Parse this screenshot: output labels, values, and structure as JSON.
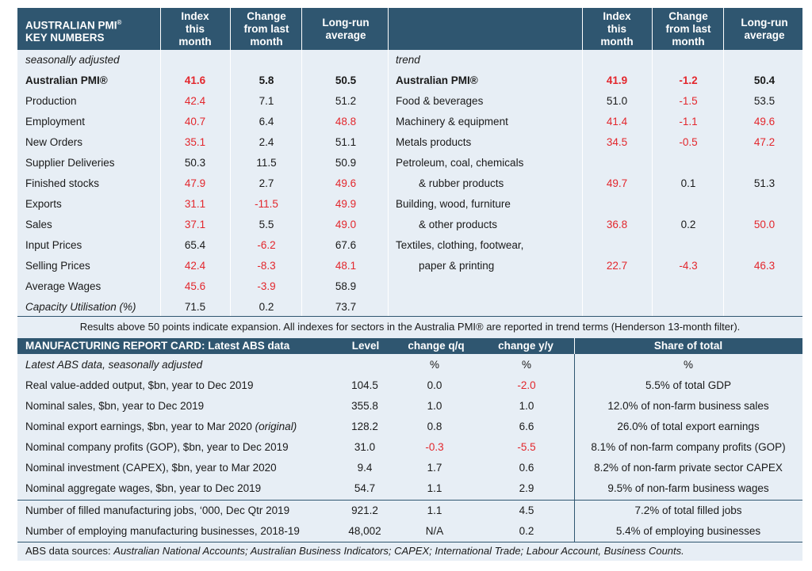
{
  "pmi_header": {
    "title_line1": "AUSTRALIAN PMI",
    "title_sup": "®",
    "title_line2": "KEY NUMBERS",
    "col_index": [
      "Index",
      "this",
      "month"
    ],
    "col_change": [
      "Change",
      "from last",
      "month"
    ],
    "col_longrun": [
      "Long-run",
      "average"
    ]
  },
  "left_section_label": "seasonally adjusted",
  "right_section_label": "trend",
  "left_rows": [
    {
      "label": "Australian PMI®",
      "index": "41.6",
      "change": "5.8",
      "avg": "50.5"
    },
    {
      "label": "Production",
      "index": "42.4",
      "change": "7.1",
      "avg": "51.2"
    },
    {
      "label": "Employment",
      "index": "40.7",
      "change": "6.4",
      "avg": "48.8"
    },
    {
      "label": "New Orders",
      "index": "35.1",
      "change": "2.4",
      "avg": "51.1"
    },
    {
      "label": "Supplier Deliveries",
      "index": "50.3",
      "change": "11.5",
      "avg": "50.9"
    },
    {
      "label": "Finished stocks",
      "index": "47.9",
      "change": "2.7",
      "avg": "49.6"
    },
    {
      "label": "Exports",
      "index": "31.1",
      "change": "-11.5",
      "avg": "49.9"
    },
    {
      "label": "Sales",
      "index": "37.1",
      "change": "5.5",
      "avg": "49.0"
    },
    {
      "label": "Input Prices",
      "index": "65.4",
      "change": "-6.2",
      "avg": "67.6"
    },
    {
      "label": "Selling Prices",
      "index": "42.4",
      "change": "-8.3",
      "avg": "48.1"
    },
    {
      "label": "Average Wages",
      "index": "45.6",
      "change": "-3.9",
      "avg": "58.9"
    },
    {
      "label": "Capacity Utilisation (%)",
      "index": "71.5",
      "change": "0.2",
      "avg": "73.7"
    }
  ],
  "right_rows": [
    {
      "label": "Australian PMI®",
      "index": "41.9",
      "change": "-1.2",
      "avg": "50.4"
    },
    {
      "label": "Food & beverages",
      "index": "51.0",
      "change": "-1.5",
      "avg": "53.5"
    },
    {
      "label": "Machinery & equipment",
      "index": "41.4",
      "change": "-1.1",
      "avg": "49.6"
    },
    {
      "label": "Metals products",
      "index": "34.5",
      "change": "-0.5",
      "avg": "47.2"
    },
    {
      "label": "Petroleum, coal, chemicals",
      "index": "",
      "change": "",
      "avg": ""
    },
    {
      "label": "& rubber products",
      "index": "49.7",
      "change": "0.1",
      "avg": "51.3"
    },
    {
      "label": "Building, wood, furniture",
      "index": "",
      "change": "",
      "avg": ""
    },
    {
      "label": "& other products",
      "index": "36.8",
      "change": "0.2",
      "avg": "50.0"
    },
    {
      "label": "Textiles, clothing, footwear,",
      "index": "",
      "change": "",
      "avg": ""
    },
    {
      "label": "paper & printing",
      "index": "22.7",
      "change": "-4.3",
      "avg": "46.3"
    }
  ],
  "note": "Results above 50 points indicate expansion. All indexes for sectors in the Australia PMI® are reported in trend terms (Henderson 13-month filter).",
  "report_header": {
    "title": "MANUFACTURING REPORT CARD: Latest ABS data",
    "level": "Level",
    "change_qq": "change q/q",
    "change_yy": "change y/y",
    "share": "Share of total"
  },
  "report_subheader": {
    "label": "Latest ABS data, seasonally adjusted",
    "qq_unit": "%",
    "yy_unit": "%",
    "share_unit": "%"
  },
  "report_rows": [
    {
      "label": "Real value-added output, $bn, year to Dec 2019",
      "label_italic": "",
      "level": "104.5",
      "qq": "0.0",
      "yy": "-2.0",
      "share": "5.5% of total GDP"
    },
    {
      "label": "Nominal sales, $bn, year to Dec 2019",
      "label_italic": "",
      "level": "355.8",
      "qq": "1.0",
      "yy": "1.0",
      "share": "12.0% of non-farm business sales"
    },
    {
      "label": "Nominal export earnings, $bn, year to Mar 2020 ",
      "label_italic": "(original)",
      "level": "128.2",
      "qq": "0.8",
      "yy": "6.6",
      "share": "26.0% of total export earnings"
    },
    {
      "label": "Nominal company profits (GOP), $bn, year to Dec 2019",
      "label_italic": "",
      "level": "31.0",
      "qq": "-0.3",
      "yy": "-5.5",
      "share": "8.1% of non-farm company profits (GOP)"
    },
    {
      "label": "Nominal investment (CAPEX), $bn, year to Mar 2020",
      "label_italic": "",
      "level": "9.4",
      "qq": "1.7",
      "yy": "0.6",
      "share": "8.2% of non-farm private sector CAPEX"
    },
    {
      "label": "Nominal aggregate wages, $bn, year to Dec 2019",
      "label_italic": "",
      "level": "54.7",
      "qq": "1.1",
      "yy": "2.9",
      "share": "9.5% of non-farm business wages"
    },
    {
      "label": "Number of filled manufacturing jobs, ‘000, Dec Qtr 2019",
      "label_italic": "",
      "level": "921.2",
      "qq": "1.1",
      "yy": "4.5",
      "share": "7.2% of total filled jobs"
    },
    {
      "label": "Number of employing manufacturing businesses, 2018-19",
      "label_italic": "",
      "level": "48,002",
      "qq": "N/A",
      "yy": "0.2",
      "share": "5.4% of employing businesses"
    }
  ],
  "sources_prefix": "ABS data sources: ",
  "sources_list": "Australian National Accounts; Australian Business Indicators; CAPEX; International Trade; Labour Account, Business Counts.",
  "colors": {
    "header_bg": "#2f5670",
    "body_bg": "#e7eef5",
    "red": "#e3262c"
  }
}
